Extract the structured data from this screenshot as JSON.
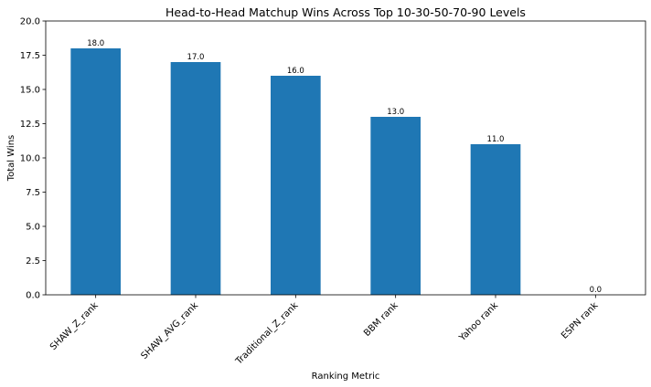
{
  "chart_data": {
    "type": "bar",
    "title": "Head-to-Head Matchup Wins Across Top 10-30-50-70-90 Levels",
    "xlabel": "Ranking Metric",
    "ylabel": "Total Wins",
    "categories": [
      "SHAW_Z_rank",
      "SHAW_AVG_rank",
      "Traditional_Z_rank",
      "BBM rank",
      "Yahoo rank",
      "ESPN rank"
    ],
    "values": [
      18.0,
      17.0,
      16.0,
      13.0,
      11.0,
      0.0
    ],
    "data_labels": [
      "18.0",
      "17.0",
      "16.0",
      "13.0",
      "11.0",
      "0.0"
    ],
    "ylim": [
      0,
      20
    ],
    "yticks": [
      0,
      2.5,
      5,
      7.5,
      10,
      12.5,
      15,
      17.5,
      20
    ],
    "ytick_labels": [
      "0.0",
      "2.5",
      "5.0",
      "7.5",
      "10.0",
      "12.5",
      "15.0",
      "17.5",
      "20.0"
    ],
    "bar_color": "#1f77b4",
    "grid": false,
    "legend": "none"
  }
}
